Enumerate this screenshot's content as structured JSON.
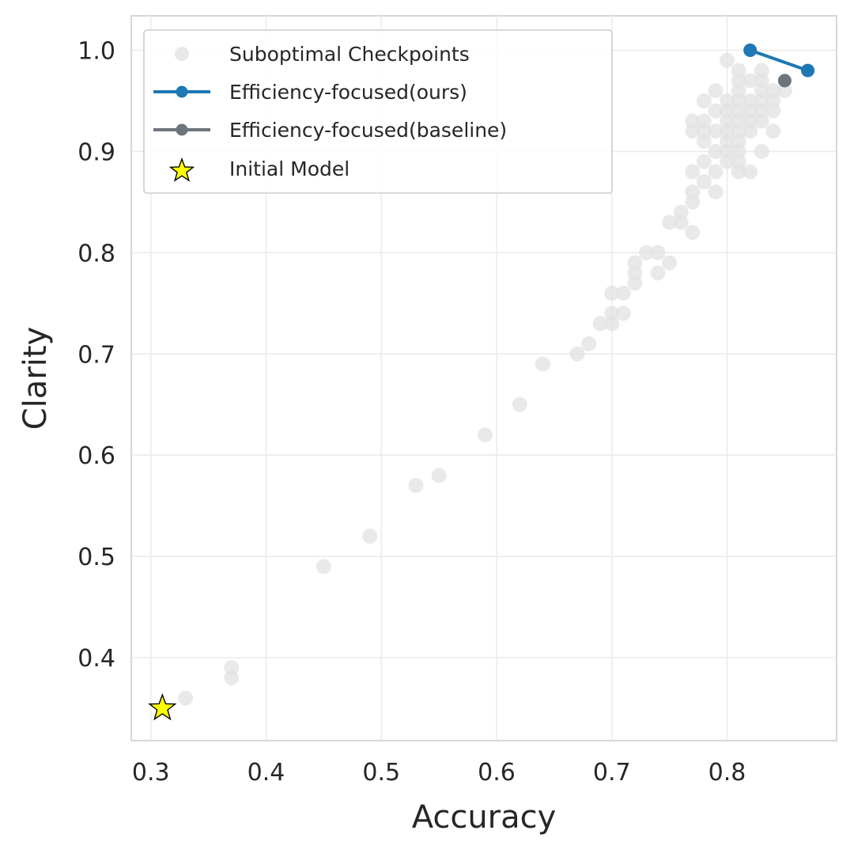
{
  "chart_data": {
    "type": "scatter",
    "xlabel": "Accuracy",
    "ylabel": "Clarity",
    "xlim": [
      0.283,
      0.895
    ],
    "ylim": [
      0.318,
      1.034
    ],
    "xticks": [
      "0.3",
      "0.4",
      "0.5",
      "0.6",
      "0.7",
      "0.8"
    ],
    "yticks": [
      "0.4",
      "0.5",
      "0.6",
      "0.7",
      "0.8",
      "0.9",
      "1.0"
    ],
    "grid": true,
    "legend_position": "top-left",
    "series": [
      {
        "name": "Suboptimal Checkpoints",
        "kind": "scatter",
        "color": "#e2e2e2",
        "points": [
          [
            0.33,
            0.36
          ],
          [
            0.37,
            0.39
          ],
          [
            0.37,
            0.38
          ],
          [
            0.45,
            0.49
          ],
          [
            0.49,
            0.52
          ],
          [
            0.53,
            0.57
          ],
          [
            0.55,
            0.58
          ],
          [
            0.59,
            0.62
          ],
          [
            0.62,
            0.65
          ],
          [
            0.64,
            0.69
          ],
          [
            0.67,
            0.7
          ],
          [
            0.68,
            0.71
          ],
          [
            0.69,
            0.73
          ],
          [
            0.7,
            0.73
          ],
          [
            0.7,
            0.74
          ],
          [
            0.7,
            0.76
          ],
          [
            0.71,
            0.74
          ],
          [
            0.71,
            0.76
          ],
          [
            0.72,
            0.77
          ],
          [
            0.72,
            0.78
          ],
          [
            0.72,
            0.79
          ],
          [
            0.73,
            0.8
          ],
          [
            0.74,
            0.78
          ],
          [
            0.74,
            0.8
          ],
          [
            0.75,
            0.79
          ],
          [
            0.75,
            0.83
          ],
          [
            0.76,
            0.83
          ],
          [
            0.76,
            0.84
          ],
          [
            0.77,
            0.82
          ],
          [
            0.77,
            0.85
          ],
          [
            0.77,
            0.86
          ],
          [
            0.77,
            0.88
          ],
          [
            0.77,
            0.92
          ],
          [
            0.77,
            0.93
          ],
          [
            0.78,
            0.87
          ],
          [
            0.78,
            0.89
          ],
          [
            0.78,
            0.91
          ],
          [
            0.78,
            0.92
          ],
          [
            0.78,
            0.93
          ],
          [
            0.78,
            0.95
          ],
          [
            0.79,
            0.86
          ],
          [
            0.79,
            0.88
          ],
          [
            0.79,
            0.9
          ],
          [
            0.79,
            0.92
          ],
          [
            0.79,
            0.94
          ],
          [
            0.79,
            0.96
          ],
          [
            0.8,
            0.89
          ],
          [
            0.8,
            0.9
          ],
          [
            0.8,
            0.91
          ],
          [
            0.8,
            0.92
          ],
          [
            0.8,
            0.93
          ],
          [
            0.8,
            0.94
          ],
          [
            0.8,
            0.95
          ],
          [
            0.8,
            0.99
          ],
          [
            0.81,
            0.88
          ],
          [
            0.81,
            0.89
          ],
          [
            0.81,
            0.9
          ],
          [
            0.81,
            0.91
          ],
          [
            0.81,
            0.92
          ],
          [
            0.81,
            0.93
          ],
          [
            0.81,
            0.94
          ],
          [
            0.81,
            0.95
          ],
          [
            0.81,
            0.96
          ],
          [
            0.81,
            0.97
          ],
          [
            0.81,
            0.98
          ],
          [
            0.82,
            0.88
          ],
          [
            0.82,
            0.92
          ],
          [
            0.82,
            0.93
          ],
          [
            0.82,
            0.94
          ],
          [
            0.82,
            0.95
          ],
          [
            0.82,
            0.97
          ],
          [
            0.83,
            0.9
          ],
          [
            0.83,
            0.93
          ],
          [
            0.83,
            0.94
          ],
          [
            0.83,
            0.95
          ],
          [
            0.83,
            0.96
          ],
          [
            0.83,
            0.97
          ],
          [
            0.83,
            0.98
          ],
          [
            0.84,
            0.92
          ],
          [
            0.84,
            0.94
          ],
          [
            0.84,
            0.95
          ],
          [
            0.84,
            0.96
          ],
          [
            0.85,
            0.96
          ]
        ]
      },
      {
        "name": "Efficiency-focused(ours)",
        "kind": "line",
        "color": "#1f77b4",
        "points": [
          [
            0.82,
            1.0
          ],
          [
            0.87,
            0.98
          ]
        ]
      },
      {
        "name": "Efficiency-focused(baseline)",
        "kind": "line",
        "color": "#6c757d",
        "points": [
          [
            0.85,
            0.97
          ]
        ]
      },
      {
        "name": "Initial Model",
        "kind": "star",
        "color": "#ffff00",
        "points": [
          [
            0.31,
            0.35
          ]
        ]
      }
    ]
  }
}
